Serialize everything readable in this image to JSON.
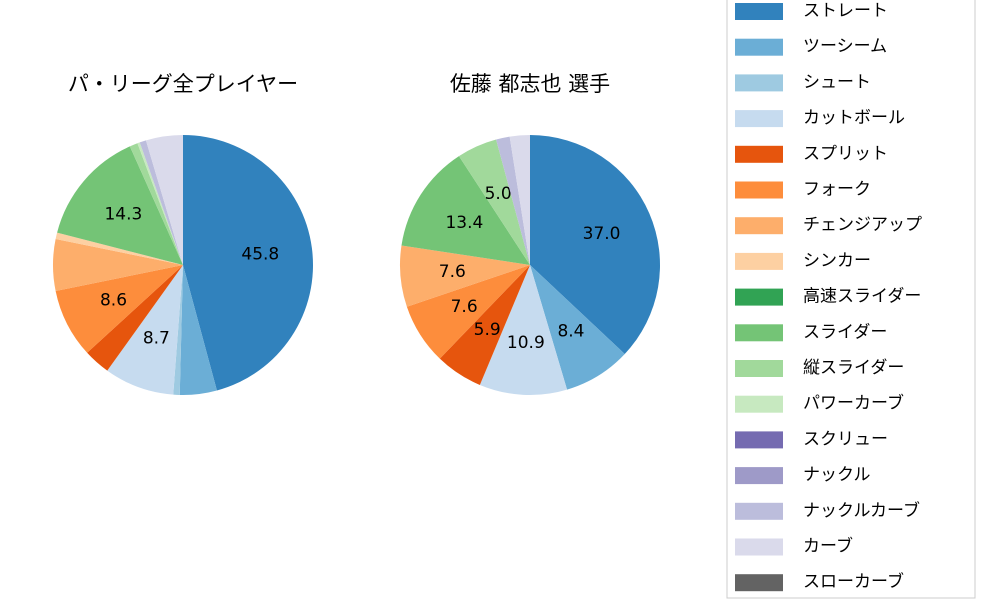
{
  "chart_data": [
    {
      "type": "pie",
      "title": "パ・リーグ全プレイヤー",
      "categories": [
        "ストレート",
        "ツーシーム",
        "シュート",
        "カットボール",
        "スプリット",
        "フォーク",
        "チェンジアップ",
        "シンカー",
        "高速スライダー",
        "スライダー",
        "縦スライダー",
        "パワーカーブ",
        "スクリュー",
        "ナックル",
        "ナックルカーブ",
        "カーブ",
        "スローカーブ"
      ],
      "values": [
        45.8,
        4.6,
        0.8,
        8.7,
        3.3,
        8.6,
        6.4,
        0.8,
        0,
        14.3,
        1.0,
        0.3,
        0,
        0,
        0.8,
        4.6,
        0
      ],
      "value_labels": [
        "45.8",
        null,
        null,
        "8.7",
        null,
        "8.6",
        null,
        null,
        null,
        "14.3",
        null,
        null,
        null,
        null,
        null,
        null,
        null
      ],
      "colors": [
        "#3182bd",
        "#6baed6",
        "#9ecae1",
        "#c6dbef",
        "#e6550d",
        "#fd8d3c",
        "#fdae6b",
        "#fdd0a2",
        "#31a354",
        "#74c476",
        "#a1d99b",
        "#c7e9c0",
        "#756bb1",
        "#9e9ac8",
        "#bcbddc",
        "#dadaeb",
        "#636363"
      ]
    },
    {
      "type": "pie",
      "title": "佐藤 都志也  選手",
      "categories": [
        "ストレート",
        "ツーシーム",
        "シュート",
        "カットボール",
        "スプリット",
        "フォーク",
        "チェンジアップ",
        "シンカー",
        "高速スライダー",
        "スライダー",
        "縦スライダー",
        "パワーカーブ",
        "スクリュー",
        "ナックル",
        "ナックルカーブ",
        "カーブ",
        "スローカーブ"
      ],
      "values": [
        37.0,
        8.4,
        0,
        10.9,
        5.9,
        7.6,
        7.6,
        0,
        0,
        13.4,
        5.0,
        0,
        0,
        0,
        1.7,
        2.5,
        0
      ],
      "value_labels": [
        "37.0",
        "8.4",
        null,
        "10.9",
        "5.9",
        "7.6",
        "7.6",
        null,
        null,
        "13.4",
        "5.0",
        null,
        null,
        null,
        null,
        null,
        null
      ],
      "colors": [
        "#3182bd",
        "#6baed6",
        "#9ecae1",
        "#c6dbef",
        "#e6550d",
        "#fd8d3c",
        "#fdae6b",
        "#fdd0a2",
        "#31a354",
        "#74c476",
        "#a1d99b",
        "#c7e9c0",
        "#756bb1",
        "#9e9ac8",
        "#bcbddc",
        "#dadaeb",
        "#636363"
      ]
    }
  ]
}
